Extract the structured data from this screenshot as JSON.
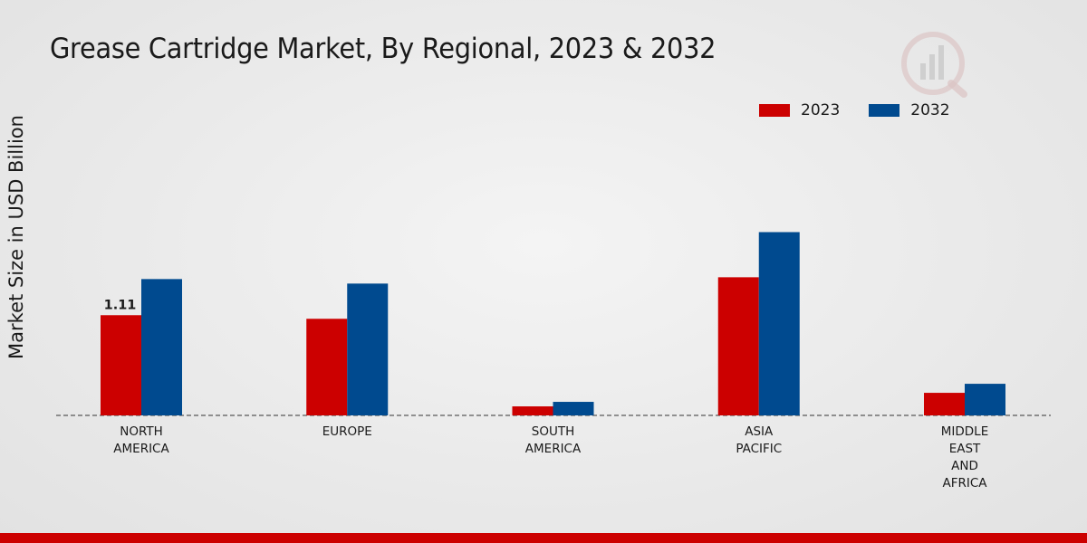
{
  "chart_data": {
    "type": "bar",
    "title": "Grease Cartridge Market, By Regional, 2023 & 2032",
    "xlabel": "",
    "ylabel": "Market Size in USD Billion",
    "categories": [
      [
        "NORTH",
        "AMERICA"
      ],
      [
        "EUROPE"
      ],
      [
        "SOUTH",
        "AMERICA"
      ],
      [
        "ASIA",
        "PACIFIC"
      ],
      [
        "MIDDLE",
        "EAST",
        "AND",
        "AFRICA"
      ]
    ],
    "series": [
      {
        "name": "2023",
        "color": "#cc0000",
        "values": [
          1.11,
          1.07,
          0.1,
          1.53,
          0.25
        ]
      },
      {
        "name": "2032",
        "color": "#004a8f",
        "values": [
          1.51,
          1.46,
          0.15,
          2.03,
          0.35
        ]
      }
    ],
    "data_labels": [
      {
        "series": 0,
        "index": 0,
        "text": "1.11"
      }
    ],
    "ylim": [
      0,
      4.2
    ],
    "grid": false,
    "legend_position": "top-right"
  }
}
